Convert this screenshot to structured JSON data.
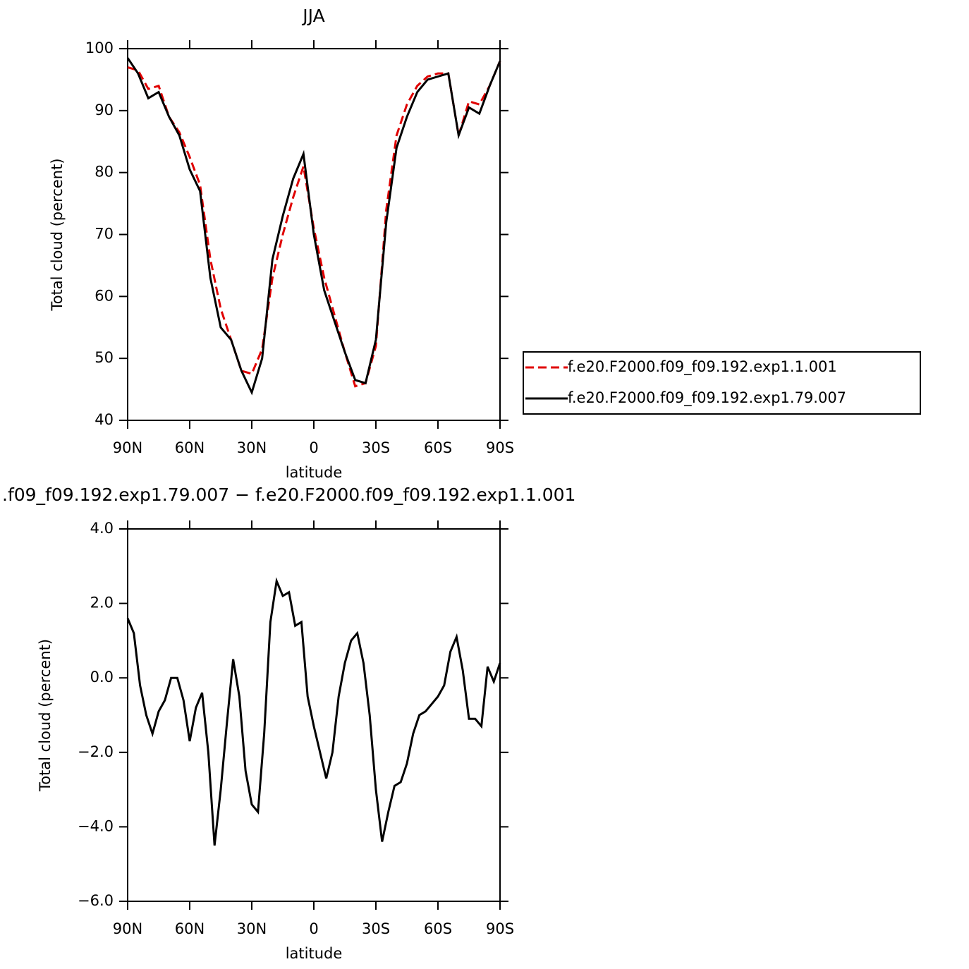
{
  "chart_data": [
    {
      "type": "line",
      "title": "JJA",
      "xlabel": "latitude",
      "ylabel": "Total cloud (percent)",
      "x": [
        90,
        85,
        80,
        75,
        70,
        65,
        60,
        55,
        50,
        45,
        40,
        35,
        30,
        25,
        20,
        15,
        10,
        5,
        0,
        -5,
        -10,
        -15,
        -20,
        -25,
        -30,
        -35,
        -40,
        -45,
        -50,
        -55,
        -60,
        -65,
        -70,
        -75,
        -80,
        -85,
        -90
      ],
      "series": [
        {
          "name": "f.e20.F2000.f09_f09.192.exp1.1.001",
          "color": "#e00000",
          "line_style": "dashed",
          "values": [
            97,
            96.5,
            93.5,
            94,
            89,
            86.5,
            82.5,
            78,
            66,
            58,
            53,
            48,
            47.5,
            51.5,
            63,
            70,
            76,
            81,
            71,
            63,
            57,
            51,
            45.5,
            46,
            52,
            74,
            86,
            91,
            94,
            95.5,
            96,
            96,
            86,
            91.5,
            91,
            94,
            98
          ]
        },
        {
          "name": "f.e20.F2000.f09_f09.192.exp1.79.007",
          "color": "#000000",
          "line_style": "solid",
          "values": [
            98.5,
            96,
            92,
            93,
            89,
            86,
            80.5,
            77,
            63,
            55,
            53,
            48,
            44.5,
            50,
            66,
            73,
            79,
            83,
            70,
            61,
            56,
            51,
            46.5,
            46,
            53,
            72,
            84,
            89,
            93,
            95,
            95.5,
            96,
            86,
            90.5,
            89.5,
            94,
            98
          ]
        }
      ],
      "xlim": [
        90,
        -90
      ],
      "xticks": [
        {
          "value": 90,
          "label": "90N"
        },
        {
          "value": 60,
          "label": "60N"
        },
        {
          "value": 30,
          "label": "30N"
        },
        0,
        {
          "value": -30,
          "label": "30S"
        },
        {
          "value": -60,
          "label": "60S"
        },
        {
          "value": -90,
          "label": "90S"
        }
      ],
      "ylim": [
        40,
        100
      ],
      "yticks": [
        40,
        50,
        60,
        70,
        80,
        90,
        100
      ],
      "legend": "right"
    },
    {
      "type": "line",
      "title": ".f09_f09.192.exp1.79.007 − f.e20.F2000.f09_f09.192.exp1.1.001",
      "xlabel": "latitude",
      "ylabel": "Total cloud (percent)",
      "x": [
        90,
        87,
        84,
        81,
        78,
        75,
        72,
        69,
        66,
        63,
        60,
        57,
        54,
        51,
        48,
        45,
        42,
        39,
        36,
        33,
        30,
        27,
        24,
        21,
        18,
        15,
        12,
        9,
        6,
        3,
        0,
        -3,
        -6,
        -9,
        -12,
        -15,
        -18,
        -21,
        -24,
        -27,
        -30,
        -33,
        -36,
        -39,
        -42,
        -45,
        -48,
        -51,
        -54,
        -57,
        -60,
        -63,
        -66,
        -69,
        -72,
        -75,
        -78,
        -81,
        -84,
        -87,
        -90
      ],
      "values": [
        1.6,
        1.2,
        -0.2,
        -1.0,
        -1.5,
        -0.9,
        -0.6,
        0.0,
        0.0,
        -0.6,
        -1.7,
        -0.8,
        -0.4,
        -2.0,
        -4.5,
        -3.0,
        -1.2,
        0.5,
        -0.5,
        -2.5,
        -3.4,
        -3.6,
        -1.5,
        1.5,
        2.6,
        2.2,
        2.3,
        1.4,
        1.5,
        -0.5,
        -1.3,
        -2.0,
        -2.7,
        -2.0,
        -0.5,
        0.4,
        1.0,
        1.2,
        0.4,
        -1.0,
        -3.0,
        -4.4,
        -3.6,
        -2.9,
        -2.8,
        -2.3,
        -1.5,
        -1.0,
        -0.9,
        -0.7,
        -0.5,
        -0.2,
        0.7,
        1.1,
        0.2,
        -1.1,
        -1.1,
        -1.3,
        0.3,
        -0.1,
        0.4
      ],
      "color": "#000000",
      "line_style": "solid",
      "xlim": [
        90,
        -90
      ],
      "xticks": [
        {
          "value": 90,
          "label": "90N"
        },
        {
          "value": 60,
          "label": "60N"
        },
        {
          "value": 30,
          "label": "30N"
        },
        0,
        {
          "value": -30,
          "label": "30S"
        },
        {
          "value": -60,
          "label": "60S"
        },
        {
          "value": -90,
          "label": "90S"
        }
      ],
      "ylim": [
        -6,
        4
      ],
      "yticks": [
        {
          "value": -6,
          "label": "−6.0"
        },
        {
          "value": -4,
          "label": "−4.0"
        },
        {
          "value": -2,
          "label": "−2.0"
        },
        {
          "value": 0,
          "label": "0.0"
        },
        {
          "value": 2,
          "label": "2.0"
        },
        {
          "value": 4,
          "label": "4.0"
        }
      ]
    }
  ]
}
